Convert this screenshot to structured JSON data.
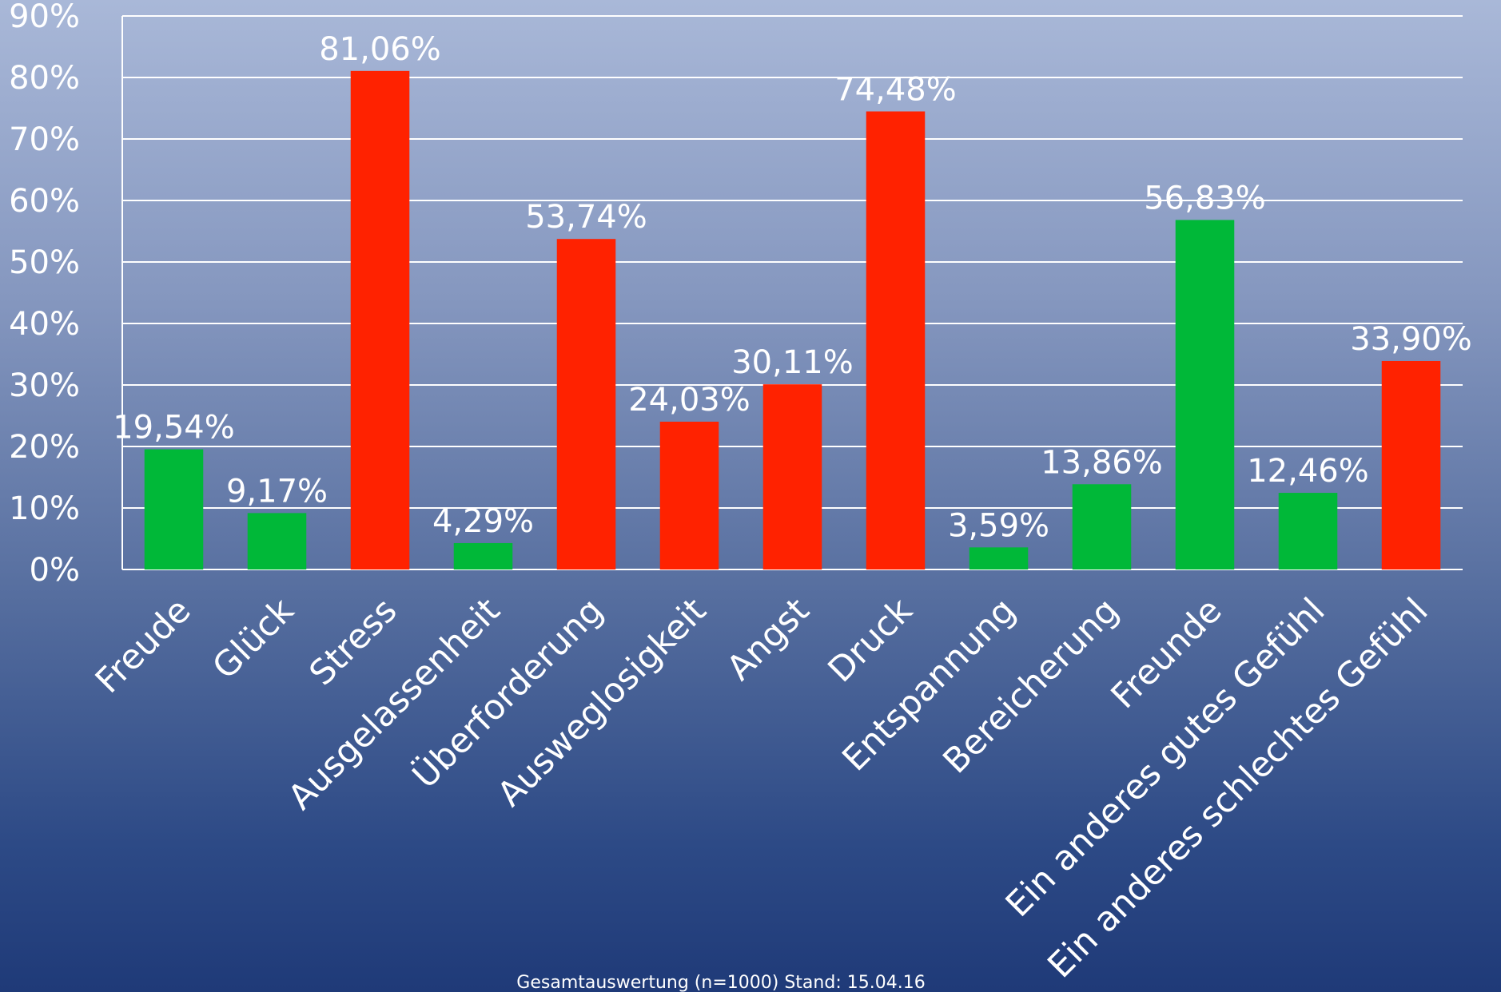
{
  "chart_data": {
    "type": "bar",
    "categories": [
      "Freude",
      "Glück",
      "Stress",
      "Ausgelassenheit",
      "Überforderung",
      "Ausweglosigkeit",
      "Angst",
      "Druck",
      "Entspannung",
      "Bereicherung",
      "Freunde",
      "Ein anderes gutes Gefühl",
      "Ein anderes schlechtes Gefühl"
    ],
    "values": [
      19.54,
      9.17,
      81.06,
      4.29,
      53.74,
      24.03,
      30.11,
      74.48,
      3.59,
      13.86,
      56.83,
      12.46,
      33.9
    ],
    "value_labels": [
      "19,54%",
      "9,17%",
      "81,06%",
      "4,29%",
      "53,74%",
      "24,03%",
      "30,11%",
      "74,48%",
      "3,59%",
      "13,86%",
      "56,83%",
      "12,46%",
      "33,90%"
    ],
    "bar_colors": [
      "#00b838",
      "#00b838",
      "#ff2200",
      "#00b838",
      "#ff2200",
      "#ff2200",
      "#ff2200",
      "#ff2200",
      "#00b838",
      "#00b838",
      "#00b838",
      "#00b838",
      "#ff2200"
    ],
    "ylim": [
      0,
      90
    ],
    "yticks": [
      "0%",
      "10%",
      "20%",
      "30%",
      "40%",
      "50%",
      "60%",
      "70%",
      "80%",
      "90%"
    ],
    "grid": true,
    "note": "Gesamtauswertung (n=1000) Stand: 15.04.16"
  }
}
